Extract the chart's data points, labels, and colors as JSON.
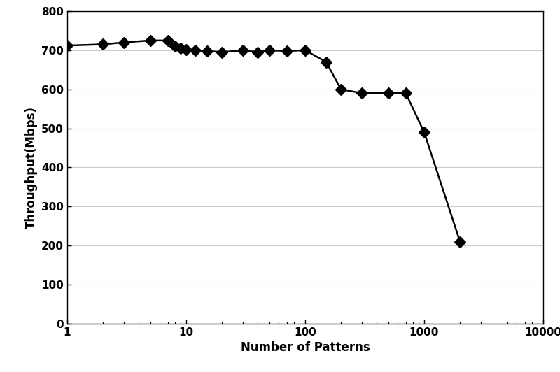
{
  "x": [
    1,
    2,
    3,
    5,
    7,
    8,
    9,
    10,
    12,
    15,
    20,
    30,
    40,
    50,
    70,
    100,
    150,
    200,
    300,
    500,
    700,
    1000,
    2000
  ],
  "y": [
    712,
    715,
    720,
    725,
    725,
    710,
    705,
    702,
    700,
    698,
    695,
    700,
    695,
    700,
    698,
    700,
    670,
    600,
    590,
    590,
    590,
    490,
    210
  ],
  "xlabel": "Number of Patterns",
  "ylabel": "Throughput(Mbps)",
  "xlim_left": 1,
  "xlim_right": 10000,
  "ylim_bottom": 0,
  "ylim_top": 800,
  "yticks": [
    0,
    100,
    200,
    300,
    400,
    500,
    600,
    700,
    800
  ],
  "marker": "D",
  "marker_size": 8,
  "line_color": "#000000",
  "marker_color": "#000000",
  "marker_face_color": "#000000",
  "background_color": "#ffffff",
  "grid_color": "#cccccc",
  "font_size_label": 12,
  "font_size_tick": 11,
  "font_weight": "bold"
}
